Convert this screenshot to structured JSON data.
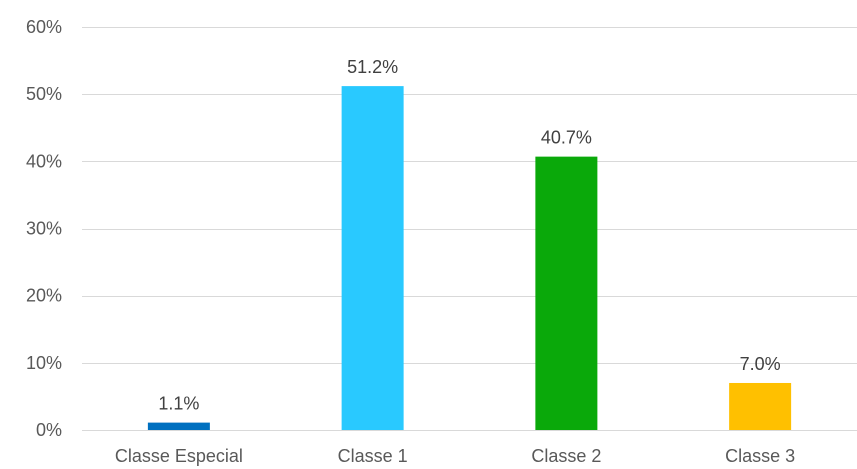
{
  "chart_data": {
    "type": "bar",
    "categories": [
      "Classe Especial",
      "Classe 1",
      "Classe 2",
      "Classe 3"
    ],
    "values": [
      1.1,
      51.2,
      40.7,
      7.0
    ],
    "data_labels": [
      "1.1%",
      "51.2%",
      "40.7%",
      "7.0%"
    ],
    "colors": [
      "#0070c0",
      "#29c9ff",
      "#0aa90a",
      "#ffc000"
    ],
    "ylim": [
      0,
      60
    ],
    "yticks": [
      0,
      10,
      20,
      30,
      40,
      50,
      60
    ],
    "ytick_labels": [
      "0%",
      "10%",
      "20%",
      "30%",
      "40%",
      "50%",
      "60%"
    ],
    "grid": true,
    "legend": "none",
    "title": "",
    "xlabel": "",
    "ylabel": ""
  }
}
